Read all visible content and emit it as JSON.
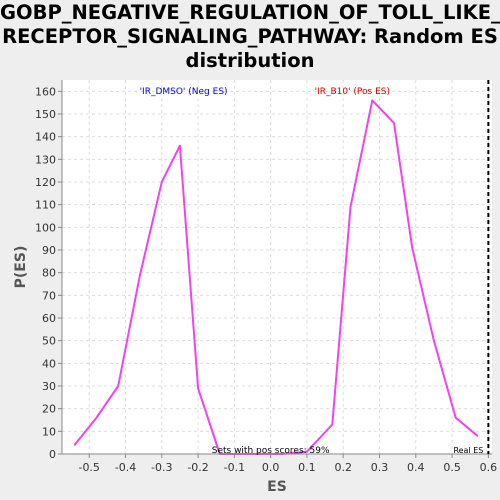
{
  "chart_data": {
    "type": "line",
    "title_lines": [
      "GOBP_NEGATIVE_REGULATION_OF_TOLL_LIKE_",
      "RECEPTOR_SIGNALING_PATHWAY: Random ES",
      "distribution"
    ],
    "xlabel": "ES",
    "ylabel": "P(ES)",
    "xlim": [
      -0.575,
      0.61
    ],
    "ylim": [
      0,
      165
    ],
    "x_ticks": [
      "-0.5",
      "-0.4",
      "-0.3",
      "-0.2",
      "-0.1",
      "0.0",
      "0.1",
      "0.2",
      "0.3",
      "0.4",
      "0.5",
      "0.6"
    ],
    "y_ticks": [
      "0",
      "10",
      "20",
      "30",
      "40",
      "50",
      "60",
      "70",
      "80",
      "90",
      "100",
      "110",
      "120",
      "130",
      "140",
      "150",
      "160"
    ],
    "grid": true,
    "line_color": "#ee44ee",
    "series": [
      {
        "x": [
          -0.54,
          -0.48,
          -0.42,
          -0.36,
          -0.3,
          -0.25,
          -0.2,
          -0.14,
          -0.09,
          -0.03,
          0.03,
          0.1,
          0.17,
          0.22,
          0.28,
          0.34,
          0.39,
          0.45,
          0.51,
          0.57
        ],
        "y": [
          4,
          16,
          30,
          79,
          120,
          136,
          29,
          0,
          0,
          0,
          0,
          1,
          13,
          109,
          156,
          146,
          91,
          50,
          16,
          8
        ]
      }
    ],
    "annotations": [
      {
        "text": "'IR_DMSO' (Neg ES)",
        "x": -0.24,
        "y": 160,
        "color": "#0000cc"
      },
      {
        "text": "'IR_B10' (Pos ES)",
        "x": 0.225,
        "y": 160,
        "color": "#cc0000"
      },
      {
        "text": "Sets with pos scores: 59%",
        "x": 0.0,
        "y": 1,
        "color": "#000000"
      },
      {
        "text": "Real ES",
        "x": 0.545,
        "y": 1,
        "color": "#000000"
      }
    ],
    "real_es_x": 0.6
  }
}
